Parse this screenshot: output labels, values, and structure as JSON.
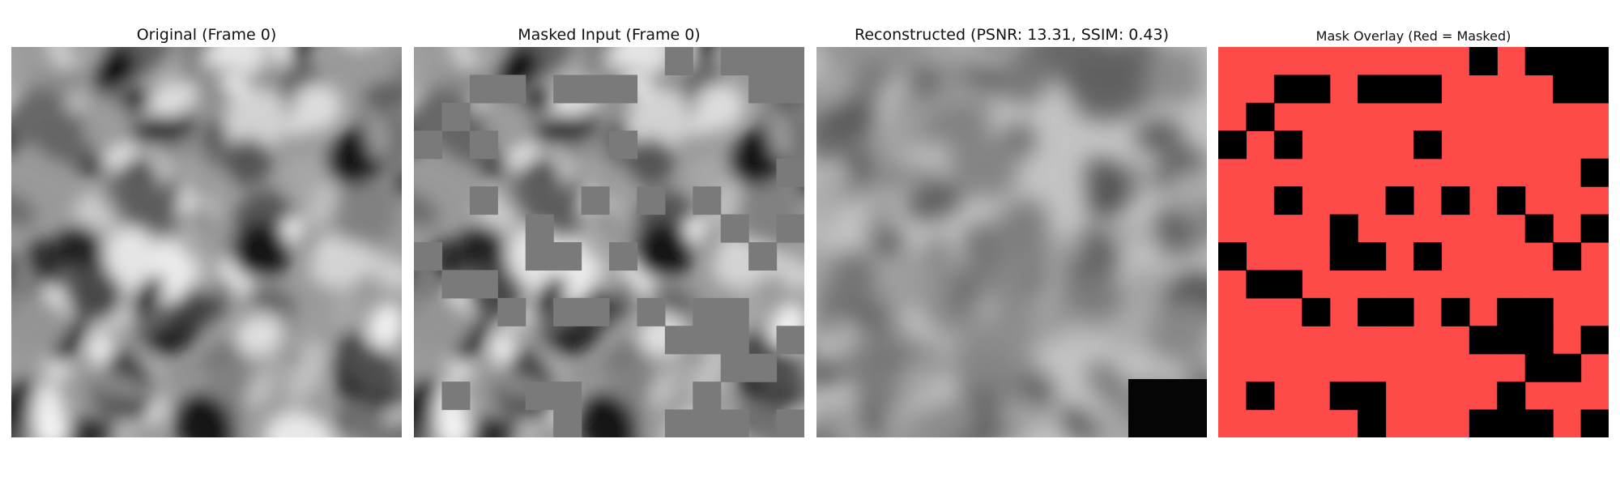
{
  "panels": [
    {
      "title": "Original (Frame 0)"
    },
    {
      "title": "Masked Input (Frame 0)"
    },
    {
      "title": "Reconstructed (PSNR: 13.31, SSIM: 0.43)"
    },
    {
      "title": "Mask Overlay (Red = Masked)"
    }
  ],
  "mask_grid": {
    "size": 14,
    "visible_cells": [
      [
        0,
        9
      ],
      [
        0,
        11
      ],
      [
        0,
        12
      ],
      [
        0,
        13
      ],
      [
        1,
        2
      ],
      [
        1,
        3
      ],
      [
        1,
        5
      ],
      [
        1,
        6
      ],
      [
        1,
        7
      ],
      [
        1,
        12
      ],
      [
        1,
        13
      ],
      [
        2,
        1
      ],
      [
        3,
        0
      ],
      [
        3,
        2
      ],
      [
        3,
        7
      ],
      [
        4,
        13
      ],
      [
        5,
        2
      ],
      [
        5,
        6
      ],
      [
        5,
        8
      ],
      [
        5,
        10
      ],
      [
        6,
        4
      ],
      [
        6,
        11
      ],
      [
        6,
        13
      ],
      [
        7,
        0
      ],
      [
        7,
        4
      ],
      [
        7,
        5
      ],
      [
        7,
        7
      ],
      [
        7,
        12
      ],
      [
        8,
        1
      ],
      [
        8,
        2
      ],
      [
        9,
        3
      ],
      [
        9,
        5
      ],
      [
        9,
        6
      ],
      [
        9,
        8
      ],
      [
        9,
        10
      ],
      [
        9,
        11
      ],
      [
        10,
        9
      ],
      [
        10,
        10
      ],
      [
        10,
        11
      ],
      [
        10,
        13
      ],
      [
        11,
        11
      ],
      [
        11,
        12
      ],
      [
        12,
        1
      ],
      [
        12,
        4
      ],
      [
        12,
        5
      ],
      [
        12,
        10
      ],
      [
        13,
        5
      ],
      [
        13,
        9
      ],
      [
        13,
        10
      ],
      [
        13,
        11
      ],
      [
        13,
        13
      ]
    ]
  },
  "colors": {
    "mask_red": "#ff4a4a",
    "mask_gray": "#7a7a7a"
  }
}
